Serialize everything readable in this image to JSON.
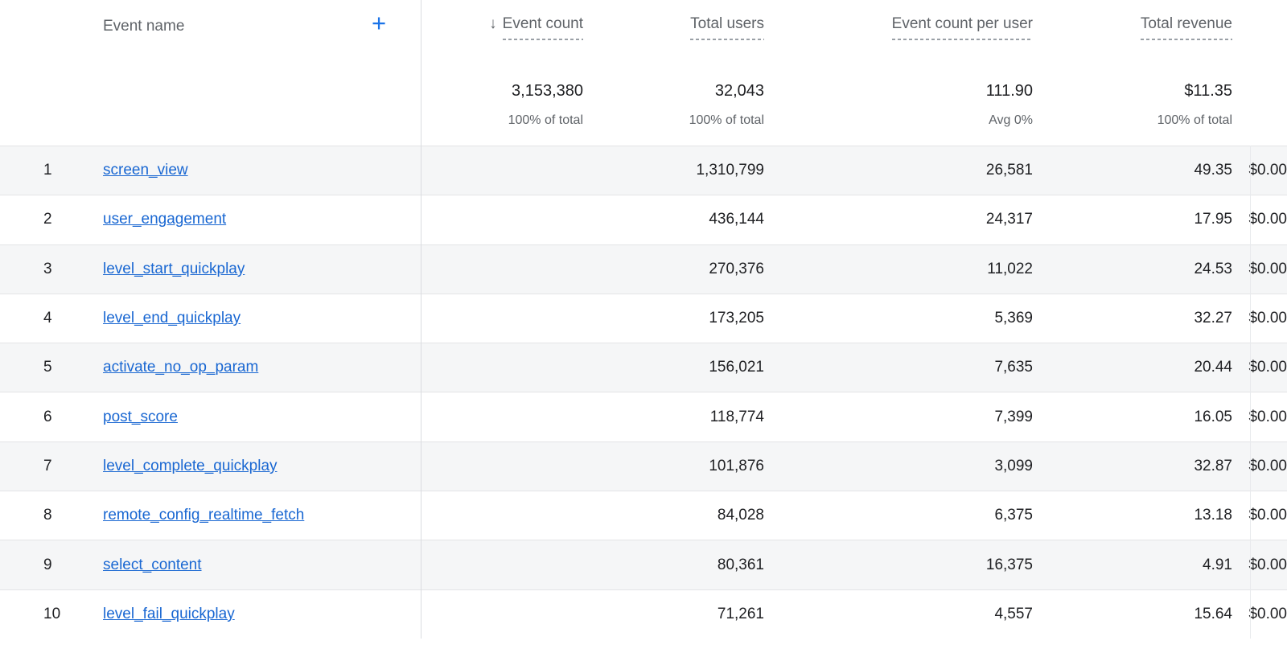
{
  "table": {
    "event_name_label": "Event name",
    "add_button_label": "+",
    "sort_icon": "↓",
    "columns": [
      {
        "label": "Event count",
        "total": "3,153,380",
        "subtitle": "100% of total"
      },
      {
        "label": "Total users",
        "total": "32,043",
        "subtitle": "100% of total"
      },
      {
        "label": "Event count per user",
        "total": "111.90",
        "subtitle": "Avg 0%"
      },
      {
        "label": "Total revenue",
        "total": "$11.35",
        "subtitle": "100% of total"
      }
    ],
    "rows": [
      {
        "index": "1",
        "event_name": "screen_view",
        "event_count": "1,310,799",
        "total_users": "26,581",
        "event_count_per_user": "49.35",
        "total_revenue": "$0.00"
      },
      {
        "index": "2",
        "event_name": "user_engagement",
        "event_count": "436,144",
        "total_users": "24,317",
        "event_count_per_user": "17.95",
        "total_revenue": "$0.00"
      },
      {
        "index": "3",
        "event_name": "level_start_quickplay",
        "event_count": "270,376",
        "total_users": "11,022",
        "event_count_per_user": "24.53",
        "total_revenue": "$0.00"
      },
      {
        "index": "4",
        "event_name": "level_end_quickplay",
        "event_count": "173,205",
        "total_users": "5,369",
        "event_count_per_user": "32.27",
        "total_revenue": "$0.00"
      },
      {
        "index": "5",
        "event_name": "activate_no_op_param",
        "event_count": "156,021",
        "total_users": "7,635",
        "event_count_per_user": "20.44",
        "total_revenue": "$0.00"
      },
      {
        "index": "6",
        "event_name": "post_score",
        "event_count": "118,774",
        "total_users": "7,399",
        "event_count_per_user": "16.05",
        "total_revenue": "$0.00"
      },
      {
        "index": "7",
        "event_name": "level_complete_quickplay",
        "event_count": "101,876",
        "total_users": "3,099",
        "event_count_per_user": "32.87",
        "total_revenue": "$0.00"
      },
      {
        "index": "8",
        "event_name": "remote_config_realtime_fetch",
        "event_count": "84,028",
        "total_users": "6,375",
        "event_count_per_user": "13.18",
        "total_revenue": "$0.00"
      },
      {
        "index": "9",
        "event_name": "select_content",
        "event_count": "80,361",
        "total_users": "16,375",
        "event_count_per_user": "4.91",
        "total_revenue": "$0.00"
      },
      {
        "index": "10",
        "event_name": "level_fail_quickplay",
        "event_count": "71,261",
        "total_users": "4,557",
        "event_count_per_user": "15.64",
        "total_revenue": "$0.00"
      }
    ]
  },
  "colors": {
    "link_blue": "#1967d2",
    "accent_blue": "#1a73e8",
    "header_text": "#5f6368",
    "value_text": "#202124",
    "row_stripe": "#f5f6f7",
    "divider": "#dadce0"
  }
}
